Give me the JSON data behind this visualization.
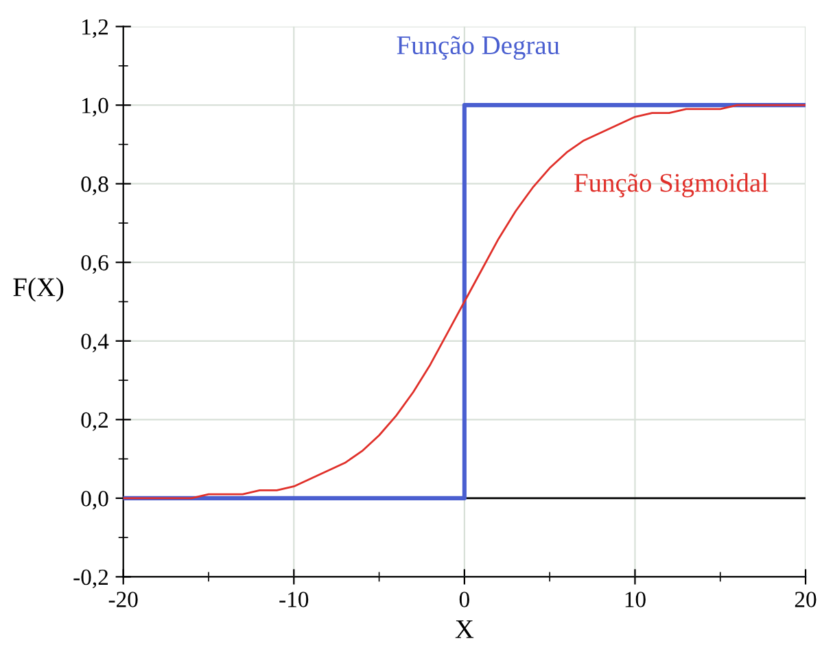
{
  "chart_data": {
    "type": "line",
    "xlabel": "X",
    "ylabel": "F(X)",
    "xlim": [
      -20,
      20
    ],
    "xticks": [
      -20,
      -10,
      0,
      10,
      20
    ],
    "ylim": [
      -0.2,
      1.2
    ],
    "yticks": [
      {
        "value": -0.2,
        "label": "-0,2"
      },
      {
        "value": 0,
        "label": "0,0"
      },
      {
        "value": 0.2,
        "label": "0,2"
      },
      {
        "value": 0.4,
        "label": "0,4"
      },
      {
        "value": 0.6,
        "label": "0,6"
      },
      {
        "value": 0.8,
        "label": "0,8"
      },
      {
        "value": 1.0,
        "label": "1,0"
      },
      {
        "value": 1.2,
        "label": "1,2"
      }
    ],
    "grid": true,
    "legend": false,
    "marker": "none",
    "line_style": "solid",
    "ref_lines": [
      {
        "axis": "y",
        "value": 0,
        "color": "#000000"
      }
    ],
    "series": [
      {
        "name": "Função Degrau",
        "color": "#4a5fd0",
        "x": [
          -20,
          0,
          0,
          20
        ],
        "values": [
          0,
          0,
          1.0,
          1.0
        ]
      },
      {
        "name": "Função Sigmoidal",
        "color": "#e0302a",
        "x": [
          -20,
          -18,
          -16,
          -15,
          -14,
          -13,
          -12,
          -11,
          -10,
          -9,
          -8,
          -7,
          -6,
          -5,
          -4,
          -3,
          -2,
          -1,
          0,
          1,
          2,
          3,
          4,
          5,
          6,
          7,
          8,
          9,
          10,
          11,
          12,
          13,
          14,
          15,
          16,
          18,
          20
        ],
        "values": [
          0.0,
          0.0,
          0.0,
          0.01,
          0.01,
          0.01,
          0.02,
          0.02,
          0.03,
          0.05,
          0.07,
          0.09,
          0.12,
          0.16,
          0.21,
          0.27,
          0.34,
          0.42,
          0.5,
          0.58,
          0.66,
          0.73,
          0.79,
          0.84,
          0.88,
          0.91,
          0.93,
          0.95,
          0.97,
          0.98,
          0.98,
          0.99,
          0.99,
          0.99,
          1.0,
          1.0,
          1.0
        ]
      }
    ]
  }
}
